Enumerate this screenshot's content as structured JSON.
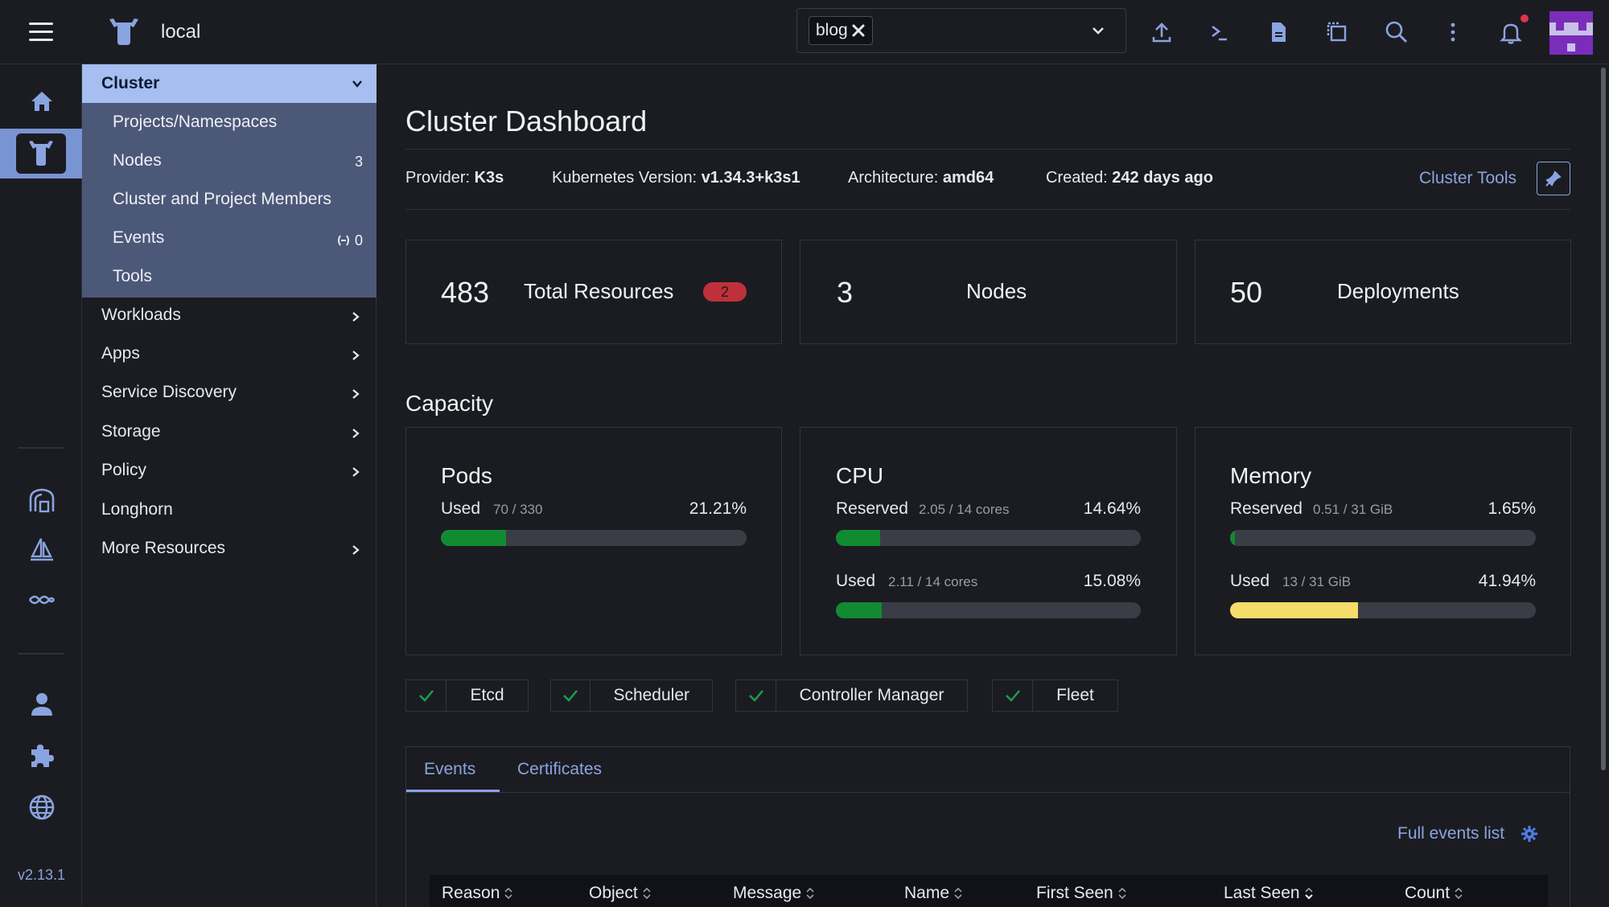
{
  "topbar": {
    "cluster_name": "local",
    "namespace_tag": "blog"
  },
  "rail": {
    "version": "v2.13.1"
  },
  "sidenav": {
    "group_label": "Cluster",
    "sub_items": [
      {
        "label": "Projects/Namespaces",
        "count": ""
      },
      {
        "label": "Nodes",
        "count": "3"
      },
      {
        "label": "Cluster and Project Members",
        "count": ""
      },
      {
        "label": "Events",
        "count": "0"
      },
      {
        "label": "Tools",
        "count": ""
      }
    ],
    "items": [
      {
        "label": "Workloads"
      },
      {
        "label": "Apps"
      },
      {
        "label": "Service Discovery"
      },
      {
        "label": "Storage"
      },
      {
        "label": "Policy"
      },
      {
        "label": "Longhorn"
      },
      {
        "label": "More Resources"
      }
    ]
  },
  "main": {
    "title": "Cluster Dashboard",
    "meta": {
      "provider_label": "Provider:",
      "provider": "K3s",
      "k8s_label": "Kubernetes Version:",
      "k8s_version": "v1.34.3+k3s1",
      "arch_label": "Architecture:",
      "arch": "amd64",
      "created_label": "Created:",
      "created": "242 days ago"
    },
    "cluster_tools": "Cluster Tools",
    "stats": [
      {
        "value": "483",
        "label": "Total Resources",
        "badge": "2"
      },
      {
        "value": "3",
        "label": "Nodes"
      },
      {
        "value": "50",
        "label": "Deployments"
      }
    ],
    "capacity_title": "Capacity",
    "capacity": {
      "pods": {
        "title": "Pods",
        "used_label": "Used",
        "used_frac": "70 / 330",
        "used_pct": "21.21%",
        "used_value": 21.21
      },
      "cpu": {
        "title": "CPU",
        "reserved_label": "Reserved",
        "reserved_frac": "2.05 / 14 cores",
        "reserved_pct": "14.64%",
        "reserved_value": 14.64,
        "used_label": "Used",
        "used_frac": "2.11 / 14 cores",
        "used_pct": "15.08%",
        "used_value": 15.08
      },
      "memory": {
        "title": "Memory",
        "reserved_label": "Reserved",
        "reserved_frac": "0.51 / 31 GiB",
        "reserved_pct": "1.65%",
        "reserved_value": 1.65,
        "used_label": "Used",
        "used_frac": "13 / 31 GiB",
        "used_pct": "41.94%",
        "used_value": 41.94
      }
    },
    "components": [
      "Etcd",
      "Scheduler",
      "Controller Manager",
      "Fleet"
    ],
    "tabs": [
      "Events",
      "Certificates"
    ],
    "full_events_link": "Full events list",
    "table_headers": [
      "Reason",
      "Object",
      "Message",
      "Name",
      "First Seen",
      "Last Seen",
      "Count"
    ]
  },
  "colors": {
    "accent": "#8aa4e0",
    "nav_highlight": "#a6bef0",
    "bar_green": "#128a32",
    "bar_yellow": "#f5dd6a",
    "badge_red": "#c0303b"
  }
}
